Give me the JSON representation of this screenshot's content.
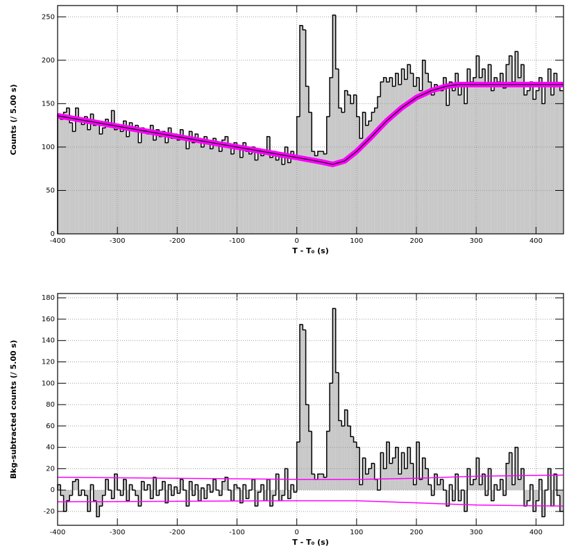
{
  "chart_data": [
    {
      "type": "histogram",
      "ylabel": "Counts (/ 5.00 s)",
      "xlabel": "T - T₀ (s)",
      "fill": "#c8c8c8",
      "edge_color": "#000000",
      "grid": true,
      "xlim": [
        -400,
        446
      ],
      "ylim": [
        0,
        263
      ],
      "xticks": [
        -400,
        -300,
        -200,
        -100,
        0,
        100,
        200,
        300,
        400
      ],
      "yticks": [
        0,
        50,
        100,
        150,
        200,
        250
      ],
      "bin_start": -400,
      "bin_width": 5,
      "values": [
        138,
        132,
        140,
        145,
        128,
        118,
        145,
        130,
        126,
        135,
        120,
        138,
        125,
        130,
        115,
        122,
        132,
        128,
        142,
        120,
        125,
        118,
        130,
        112,
        128,
        120,
        125,
        105,
        122,
        118,
        115,
        125,
        108,
        120,
        112,
        118,
        105,
        122,
        110,
        115,
        108,
        120,
        112,
        98,
        118,
        105,
        115,
        110,
        100,
        112,
        105,
        98,
        110,
        102,
        95,
        108,
        112,
        100,
        92,
        105,
        98,
        88,
        105,
        95,
        92,
        100,
        85,
        98,
        90,
        96,
        112,
        88,
        95,
        85,
        92,
        80,
        100,
        82,
        95,
        88,
        135,
        240,
        235,
        170,
        140,
        95,
        90,
        95,
        95,
        92,
        135,
        180,
        252,
        190,
        145,
        140,
        165,
        160,
        150,
        160,
        135,
        110,
        140,
        125,
        130,
        140,
        145,
        158,
        175,
        180,
        175,
        180,
        170,
        185,
        172,
        190,
        178,
        195,
        185,
        170,
        180,
        165,
        200,
        185,
        175,
        160,
        172,
        170,
        165,
        180,
        148,
        175,
        165,
        185,
        160,
        170,
        150,
        190,
        175,
        180,
        205,
        180,
        190,
        170,
        195,
        165,
        180,
        175,
        185,
        168,
        195,
        205,
        175,
        210,
        180,
        195,
        160,
        165,
        175,
        155,
        165,
        180,
        150,
        172,
        190,
        160,
        185,
        170,
        165
      ],
      "lines": [
        {
          "color": "#ff00ff",
          "edge_color": "#000000",
          "x": [
            -400,
            -300,
            -200,
            -100,
            0,
            40,
            60,
            80,
            100,
            125,
            150,
            175,
            200,
            225,
            250,
            270,
            300,
            350,
            400,
            445
          ],
          "values": [
            136,
            124,
            112,
            100,
            88,
            83,
            80,
            84,
            95,
            112,
            130,
            145,
            157,
            165,
            170,
            172,
            172,
            172,
            172,
            172
          ]
        }
      ]
    },
    {
      "type": "histogram",
      "ylabel": "Bkg-subtracted counts (/ 5.00 s)",
      "xlabel": "T - T₀ (s)",
      "fill": "#c8c8c8",
      "edge_color": "#000000",
      "grid": true,
      "xlim": [
        -400,
        446
      ],
      "ylim": [
        -33,
        184
      ],
      "xticks": [
        -400,
        -300,
        -200,
        -100,
        0,
        100,
        200,
        300,
        400
      ],
      "yticks": [
        -20,
        0,
        20,
        40,
        60,
        80,
        100,
        120,
        140,
        160,
        180
      ],
      "bin_start": -400,
      "bin_width": 5,
      "values": [
        5,
        -5,
        -20,
        -10,
        -5,
        8,
        10,
        -5,
        0,
        -5,
        -20,
        5,
        -10,
        -25,
        -15,
        -5,
        10,
        0,
        -8,
        15,
        0,
        -5,
        10,
        -10,
        5,
        0,
        -5,
        -15,
        8,
        0,
        5,
        -8,
        12,
        -5,
        0,
        8,
        -12,
        5,
        -5,
        3,
        -3,
        10,
        0,
        -15,
        8,
        -5,
        5,
        -10,
        2,
        -8,
        5,
        -2,
        10,
        0,
        -5,
        8,
        12,
        0,
        -10,
        5,
        2,
        -12,
        5,
        -8,
        0,
        10,
        -15,
        -2,
        5,
        -10,
        10,
        -15,
        -5,
        15,
        -10,
        -5,
        20,
        -8,
        5,
        -2,
        45,
        155,
        150,
        80,
        55,
        15,
        10,
        15,
        15,
        12,
        55,
        100,
        170,
        110,
        65,
        60,
        75,
        60,
        50,
        45,
        40,
        5,
        30,
        15,
        20,
        25,
        10,
        0,
        35,
        20,
        45,
        25,
        30,
        40,
        15,
        35,
        20,
        40,
        25,
        5,
        45,
        10,
        30,
        20,
        5,
        -5,
        15,
        5,
        10,
        0,
        -15,
        5,
        -10,
        15,
        -10,
        0,
        -20,
        20,
        5,
        10,
        30,
        5,
        15,
        -5,
        20,
        -10,
        5,
        0,
        10,
        -5,
        25,
        35,
        5,
        40,
        10,
        20,
        -15,
        -10,
        5,
        -20,
        -10,
        10,
        -25,
        0,
        20,
        -15,
        15,
        -5,
        -20
      ],
      "lines": [
        {
          "color": "#ff00ff",
          "x": [
            -400,
            0,
            100,
            200,
            300,
            445
          ],
          "values": [
            12,
            10,
            10,
            11,
            13,
            14
          ]
        },
        {
          "color": "#ff00ff",
          "x": [
            -400,
            0,
            100,
            200,
            250,
            300,
            445
          ],
          "values": [
            -11,
            -10,
            -10,
            -12,
            -13,
            -14,
            -15
          ]
        }
      ]
    }
  ]
}
